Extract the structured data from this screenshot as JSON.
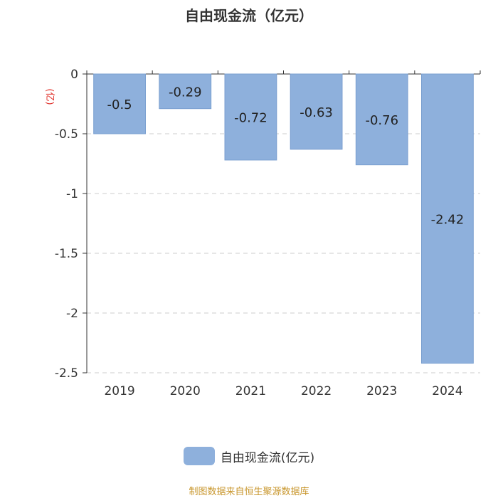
{
  "chart_data": {
    "type": "bar",
    "title": "自由现金流（亿元）",
    "ylabel": "(亿)",
    "xlabel": "",
    "categories": [
      "2019",
      "2020",
      "2021",
      "2022",
      "2023",
      "2024"
    ],
    "series": [
      {
        "name": "自由现金流(亿元)",
        "values": [
          -0.5,
          -0.29,
          -0.72,
          -0.63,
          -0.76,
          -2.42
        ]
      }
    ],
    "ylim": [
      -2.5,
      0
    ],
    "yticks": [
      0,
      -0.5,
      -1,
      -1.5,
      -2,
      -2.5
    ],
    "ytick_labels": [
      "0",
      "-0.5",
      "-1",
      "-1.5",
      "-2",
      "-2.5"
    ],
    "data_labels": [
      "-0.5",
      "-0.29",
      "-0.72",
      "-0.63",
      "-0.76",
      "-2.42"
    ],
    "grid": true,
    "legend_position": "bottom-center",
    "colors": {
      "bar": "#8eb0dc",
      "bar_edge": "#7a9fd0",
      "ylabel": "#e0302a",
      "grid": "#cccccc",
      "axis": "#333333"
    }
  },
  "source": "制图数据来自恒生聚源数据库"
}
